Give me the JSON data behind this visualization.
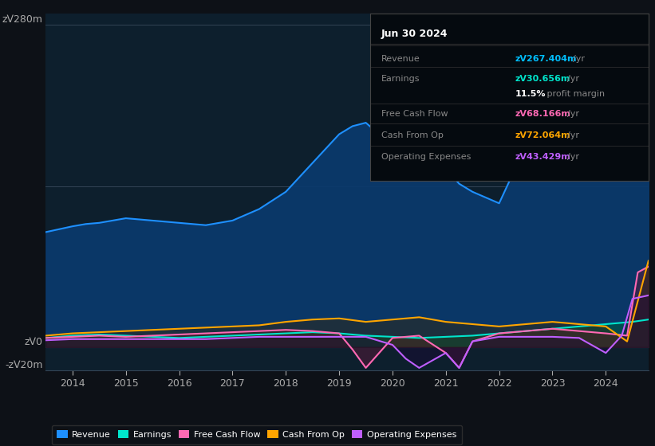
{
  "bg_color": "#0d1117",
  "plot_bg_color": "#0d1f2d",
  "title_box": {
    "header": "Jun 30 2024",
    "rows": [
      {
        "label": "Revenue",
        "value": "zᐯ267.404m",
        "unit": "/yr",
        "value_color": "#00bfff"
      },
      {
        "label": "Earnings",
        "value": "zᐯ30.656m",
        "unit": "/yr",
        "value_color": "#00e5cc"
      },
      {
        "label": "",
        "value": "11.5%",
        "unit": " profit margin",
        "value_color": "#ffffff"
      },
      {
        "label": "Free Cash Flow",
        "value": "zᐯ68.166m",
        "unit": "/yr",
        "value_color": "#ff69b4"
      },
      {
        "label": "Cash From Op",
        "value": "zᐯ72.064m",
        "unit": "/yr",
        "value_color": "#ffa500"
      },
      {
        "label": "Operating Expenses",
        "value": "zᐯ43.429m",
        "unit": "/yr",
        "value_color": "#bf5fff"
      }
    ]
  },
  "ylabel_top": "zᐯ280m",
  "ylabel_zero": "zᐯ0",
  "ylabel_neg": "-zᐯ20m",
  "ylim": [
    -20,
    290
  ],
  "xlim": [
    2013.5,
    2024.8
  ],
  "xticks": [
    2014,
    2015,
    2016,
    2017,
    2018,
    2019,
    2020,
    2021,
    2022,
    2023,
    2024
  ],
  "hgrid_vals": [
    -20,
    0,
    140,
    280
  ],
  "series": {
    "revenue": {
      "color": "#1e90ff",
      "fill_color": "#0a3a6e",
      "fill_alpha": 0.9,
      "x": [
        2013.5,
        2014.0,
        2014.25,
        2014.5,
        2015.0,
        2015.5,
        2016.0,
        2016.5,
        2017.0,
        2017.5,
        2018.0,
        2018.5,
        2019.0,
        2019.25,
        2019.5,
        2020.0,
        2020.5,
        2021.0,
        2021.25,
        2021.5,
        2022.0,
        2022.5,
        2023.0,
        2023.5,
        2024.0,
        2024.5,
        2024.8
      ],
      "y": [
        100,
        105,
        107,
        108,
        112,
        110,
        108,
        106,
        110,
        120,
        135,
        160,
        185,
        192,
        195,
        175,
        160,
        155,
        142,
        135,
        125,
        175,
        220,
        270,
        260,
        255,
        260
      ]
    },
    "earnings": {
      "color": "#00e5cc",
      "fill_color": "#005548",
      "fill_alpha": 0.7,
      "x": [
        2013.5,
        2014.0,
        2014.5,
        2015.0,
        2015.5,
        2016.0,
        2016.5,
        2017.0,
        2017.5,
        2018.0,
        2018.5,
        2019.0,
        2019.5,
        2020.0,
        2020.5,
        2021.0,
        2021.5,
        2022.0,
        2022.5,
        2023.0,
        2023.5,
        2024.0,
        2024.5,
        2024.8
      ],
      "y": [
        8,
        10,
        11,
        10,
        9,
        8,
        9,
        10,
        11,
        12,
        13,
        12,
        10,
        9,
        8,
        9,
        10,
        12,
        14,
        16,
        18,
        20,
        22,
        24
      ]
    },
    "free_cash_flow": {
      "color": "#ff69b4",
      "fill_color": "#5a1a3a",
      "fill_alpha": 0.5,
      "x": [
        2013.5,
        2014.0,
        2014.5,
        2015.0,
        2015.5,
        2016.0,
        2016.5,
        2017.0,
        2017.5,
        2018.0,
        2018.5,
        2019.0,
        2019.25,
        2019.5,
        2020.0,
        2020.5,
        2021.0,
        2021.25,
        2021.5,
        2022.0,
        2022.5,
        2023.0,
        2023.25,
        2023.5,
        2024.0,
        2024.4,
        2024.6,
        2024.8
      ],
      "y": [
        8,
        9,
        10,
        9,
        10,
        11,
        12,
        13,
        14,
        15,
        14,
        12,
        -2,
        -18,
        8,
        10,
        -5,
        -18,
        5,
        12,
        14,
        16,
        15,
        14,
        12,
        10,
        65,
        70
      ]
    },
    "cash_from_op": {
      "color": "#ffa500",
      "fill_color": "#3a2500",
      "fill_alpha": 0.4,
      "x": [
        2013.5,
        2014.0,
        2014.5,
        2015.0,
        2015.5,
        2016.0,
        2016.5,
        2017.0,
        2017.5,
        2018.0,
        2018.5,
        2019.0,
        2019.5,
        2020.0,
        2020.5,
        2021.0,
        2021.5,
        2022.0,
        2022.5,
        2023.0,
        2023.5,
        2024.0,
        2024.4,
        2024.8
      ],
      "y": [
        10,
        12,
        13,
        14,
        15,
        16,
        17,
        18,
        19,
        22,
        24,
        25,
        22,
        24,
        26,
        22,
        20,
        18,
        20,
        22,
        20,
        18,
        5,
        75
      ]
    },
    "operating_expenses": {
      "color": "#bf5fff",
      "fill_color": "#1a0535",
      "fill_alpha": 0.4,
      "x": [
        2013.5,
        2014.0,
        2014.5,
        2015.0,
        2015.5,
        2016.0,
        2016.5,
        2017.0,
        2017.5,
        2018.0,
        2018.5,
        2019.0,
        2019.5,
        2020.0,
        2020.25,
        2020.5,
        2021.0,
        2021.25,
        2021.5,
        2022.0,
        2022.5,
        2023.0,
        2023.5,
        2024.0,
        2024.3,
        2024.5,
        2024.8
      ],
      "y": [
        6,
        7,
        7,
        7,
        7,
        7,
        7,
        8,
        9,
        9,
        9,
        9,
        9,
        2,
        -10,
        -18,
        -5,
        -18,
        5,
        9,
        9,
        9,
        8,
        -5,
        10,
        42,
        45
      ]
    }
  },
  "legend": [
    {
      "label": "Revenue",
      "color": "#1e90ff"
    },
    {
      "label": "Earnings",
      "color": "#00e5cc"
    },
    {
      "label": "Free Cash Flow",
      "color": "#ff69b4"
    },
    {
      "label": "Cash From Op",
      "color": "#ffa500"
    },
    {
      "label": "Operating Expenses",
      "color": "#bf5fff"
    }
  ]
}
